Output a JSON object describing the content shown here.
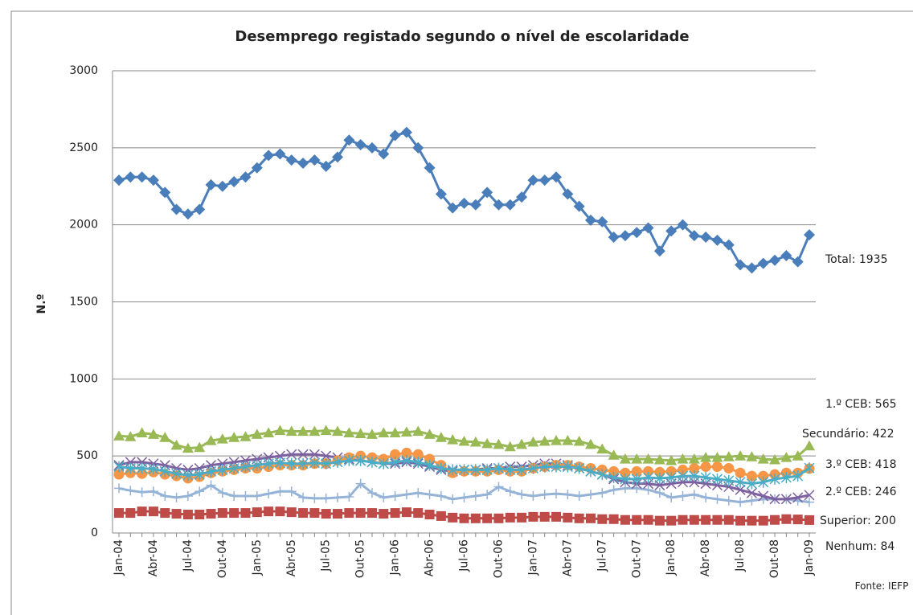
{
  "chart_data": {
    "type": "line",
    "title": "Desemprego registado segundo o nível de escolaridade",
    "y_label": "N.º",
    "source": "Fonte: IEFP",
    "categories": [
      "Jan-04",
      null,
      null,
      "Abr-04",
      null,
      null,
      "Jul-04",
      null,
      null,
      "Out-04",
      null,
      null,
      "Jan-05",
      null,
      null,
      "Abr-05",
      null,
      null,
      "Jul-05",
      null,
      null,
      "Out-05",
      null,
      null,
      "Jan-06",
      null,
      null,
      "Abr-06",
      null,
      null,
      "Jul-06",
      null,
      null,
      "Out-06",
      null,
      null,
      "Jan-07",
      null,
      null,
      "Abr-07",
      null,
      null,
      "Jul-07",
      null,
      null,
      "Out-07",
      null,
      null,
      "Jan-08",
      null,
      null,
      "Abr-08",
      null,
      null,
      "Jul-08",
      null,
      null,
      "Out-08",
      null,
      null,
      "Jan-09"
    ],
    "ylim": [
      0,
      3000
    ],
    "yticks": [
      0,
      500,
      1000,
      1500,
      2000,
      2500,
      3000
    ],
    "grid": true,
    "series": [
      {
        "name": "Total",
        "label": "Total: 1935",
        "color": "#4a7ebb",
        "marker": "diamond",
        "values": [
          2290,
          2310,
          2310,
          2290,
          2210,
          2100,
          2070,
          2100,
          2260,
          2250,
          2280,
          2310,
          2370,
          2450,
          2460,
          2420,
          2400,
          2420,
          2380,
          2440,
          2550,
          2520,
          2500,
          2460,
          2580,
          2600,
          2500,
          2370,
          2200,
          2110,
          2140,
          2130,
          2210,
          2130,
          2130,
          2180,
          2290,
          2290,
          2310,
          2200,
          2120,
          2030,
          2020,
          1920,
          1930,
          1950,
          1980,
          1830,
          1960,
          2000,
          1930,
          1920,
          1900,
          1870,
          1740,
          1720,
          1750,
          1770,
          1800,
          1760,
          1935
        ]
      },
      {
        "name": "1.º CEB",
        "label": "1.º CEB: 565",
        "color": "#98b954",
        "marker": "triangle",
        "values": [
          630,
          625,
          650,
          640,
          620,
          570,
          550,
          555,
          600,
          610,
          620,
          625,
          640,
          650,
          665,
          660,
          660,
          660,
          665,
          660,
          650,
          645,
          640,
          650,
          650,
          655,
          660,
          640,
          620,
          605,
          595,
          590,
          580,
          575,
          560,
          575,
          590,
          595,
          600,
          600,
          595,
          575,
          545,
          505,
          480,
          480,
          480,
          475,
          470,
          480,
          480,
          490,
          490,
          495,
          500,
          495,
          480,
          475,
          490,
          500,
          565
        ]
      },
      {
        "name": "Secundário",
        "label": "Secundário: 422",
        "color": "#4bacc6",
        "marker": "star",
        "values": [
          430,
          420,
          420,
          415,
          400,
          385,
          375,
          380,
          400,
          410,
          420,
          430,
          440,
          450,
          455,
          450,
          450,
          455,
          450,
          460,
          470,
          470,
          460,
          450,
          460,
          470,
          460,
          440,
          420,
          410,
          410,
          410,
          410,
          420,
          410,
          410,
          420,
          430,
          430,
          430,
          420,
          400,
          380,
          360,
          350,
          350,
          360,
          355,
          360,
          370,
          370,
          360,
          350,
          340,
          330,
          320,
          330,
          350,
          360,
          370,
          422
        ]
      },
      {
        "name": "3.º CEB",
        "label": "3.º CEB: 418",
        "color": "#f79646",
        "marker": "circle",
        "values": [
          380,
          390,
          385,
          395,
          380,
          370,
          355,
          365,
          390,
          400,
          410,
          420,
          420,
          430,
          440,
          440,
          440,
          450,
          450,
          470,
          490,
          500,
          490,
          480,
          510,
          520,
          510,
          480,
          440,
          390,
          400,
          400,
          400,
          410,
          400,
          400,
          420,
          430,
          440,
          440,
          430,
          420,
          410,
          400,
          390,
          400,
          400,
          395,
          400,
          410,
          420,
          430,
          430,
          420,
          390,
          370,
          370,
          380,
          390,
          390,
          418
        ]
      },
      {
        "name": "2.º CEB",
        "label": "2.º CEB: 246",
        "color": "#7d60a0",
        "marker": "x",
        "values": [
          440,
          460,
          460,
          450,
          440,
          420,
          410,
          420,
          440,
          450,
          460,
          470,
          480,
          490,
          500,
          510,
          510,
          510,
          500,
          490,
          480,
          470,
          460,
          450,
          450,
          460,
          450,
          430,
          410,
          400,
          410,
          410,
          420,
          420,
          430,
          430,
          440,
          450,
          450,
          440,
          420,
          400,
          380,
          350,
          330,
          320,
          320,
          310,
          320,
          330,
          330,
          320,
          310,
          300,
          280,
          260,
          240,
          220,
          220,
          230,
          246
        ]
      },
      {
        "name": "Superior",
        "label": "Superior: 200",
        "color": "#95b3d7",
        "marker": "plus",
        "values": [
          290,
          275,
          265,
          270,
          240,
          230,
          240,
          270,
          310,
          260,
          240,
          240,
          240,
          255,
          270,
          270,
          230,
          225,
          225,
          230,
          235,
          320,
          260,
          230,
          240,
          250,
          260,
          250,
          240,
          220,
          230,
          240,
          250,
          300,
          270,
          250,
          240,
          250,
          255,
          250,
          240,
          250,
          260,
          280,
          290,
          290,
          280,
          260,
          230,
          240,
          250,
          230,
          220,
          210,
          200,
          210,
          220,
          220,
          220,
          210,
          200
        ]
      },
      {
        "name": "Nenhum",
        "label": "Nenhum: 84",
        "color": "#be4b48",
        "marker": "square",
        "values": [
          130,
          130,
          140,
          140,
          130,
          125,
          120,
          120,
          125,
          130,
          130,
          130,
          135,
          140,
          140,
          135,
          130,
          130,
          125,
          125,
          130,
          130,
          130,
          125,
          130,
          135,
          130,
          120,
          110,
          100,
          95,
          95,
          95,
          95,
          100,
          100,
          105,
          105,
          105,
          100,
          95,
          95,
          90,
          90,
          85,
          85,
          85,
          80,
          80,
          85,
          85,
          85,
          85,
          85,
          80,
          80,
          80,
          85,
          90,
          88,
          84
        ]
      }
    ]
  }
}
